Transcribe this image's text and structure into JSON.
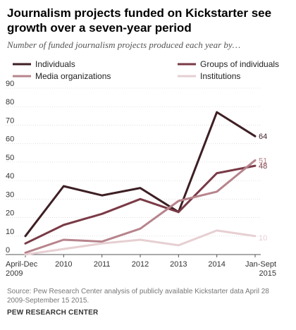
{
  "chart_data": {
    "type": "line",
    "title": "Journalism projects funded on Kickstarter see growth over a seven-year period",
    "subtitle": "Number of funded journalism projects produced each year by…",
    "x": [
      [
        "April-Dec",
        "2009"
      ],
      [
        "2010"
      ],
      [
        "2011"
      ],
      [
        "2012"
      ],
      [
        "2013"
      ],
      [
        "2014"
      ],
      [
        "Jan-Sept",
        "2015"
      ]
    ],
    "ylim": [
      0,
      90
    ],
    "yticks": [
      0,
      10,
      20,
      30,
      40,
      50,
      60,
      70,
      80,
      90
    ],
    "series": [
      {
        "name": "Individuals",
        "color": "#3d1f24",
        "values": [
          10,
          37,
          32,
          36,
          23,
          77,
          64
        ],
        "end_label": "64"
      },
      {
        "name": "Groups of individuals",
        "color": "#7a3a46",
        "values": [
          6,
          16,
          22,
          30,
          23,
          44,
          48
        ],
        "end_label": "48"
      },
      {
        "name": "Media organizations",
        "color": "#b7848c",
        "values": [
          1,
          8,
          7,
          14,
          29,
          34,
          51
        ],
        "end_label": "51"
      },
      {
        "name": "Institutions",
        "color": "#e6cfd2",
        "values": [
          0,
          3,
          6,
          8,
          5,
          13,
          10
        ],
        "end_label": "10"
      }
    ],
    "legend_position": "top",
    "grid": true,
    "source": "Source: Pew Research Center analysis of publicly available Kickstarter data April 28 2009-September 15 2015.",
    "brand": "PEW RESEARCH CENTER"
  }
}
